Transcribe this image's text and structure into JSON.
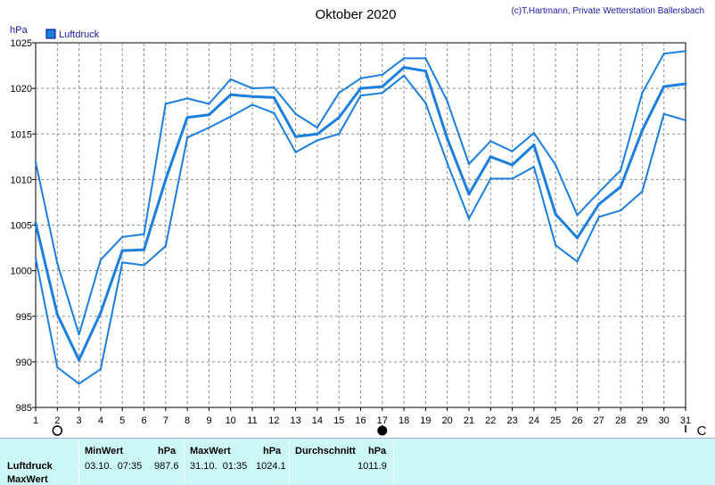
{
  "chart_data": {
    "type": "line",
    "title": "Oktober 2020",
    "credit": "(c)T.Hartmann, Private Wetterstation Ballersbach",
    "ylabel": "hPa",
    "ylim": [
      985,
      1025
    ],
    "yticks": [
      985,
      990,
      995,
      1000,
      1005,
      1010,
      1015,
      1020,
      1025
    ],
    "x": [
      1,
      2,
      3,
      4,
      5,
      6,
      7,
      8,
      9,
      10,
      11,
      12,
      13,
      14,
      15,
      16,
      17,
      18,
      19,
      20,
      21,
      22,
      23,
      24,
      25,
      26,
      27,
      28,
      29,
      30,
      31
    ],
    "legend": [
      "Luftdruck"
    ],
    "grid": true,
    "moon_phases": [
      {
        "day": 2,
        "symbol": "○"
      },
      {
        "day": 17,
        "symbol": "●"
      },
      {
        "day": 31,
        "symbol": "C"
      }
    ],
    "series": [
      {
        "name": "Luftdruck",
        "role": "max",
        "color": "#1a7fe0",
        "values": [
          1011.9,
          1000.8,
          993.0,
          1001.2,
          1003.7,
          1004.0,
          1018.3,
          1018.9,
          1018.3,
          1021.0,
          1020.0,
          1020.1,
          1017.2,
          1015.7,
          1019.5,
          1021.1,
          1021.5,
          1023.3,
          1023.3,
          1018.6,
          1011.7,
          1014.2,
          1013.1,
          1015.1,
          1011.6,
          1006.1,
          1008.6,
          1011.0,
          1019.5,
          1023.8,
          1024.1
        ]
      },
      {
        "name": "Luftdruck",
        "role": "mean",
        "color": "#1a7fe0",
        "values": [
          1005.2,
          995.2,
          990.2,
          995.4,
          1002.2,
          1002.3,
          1010.0,
          1016.8,
          1017.1,
          1019.3,
          1019.1,
          1019.0,
          1014.7,
          1015.0,
          1016.8,
          1020.0,
          1020.2,
          1022.3,
          1021.9,
          1014.5,
          1008.4,
          1012.5,
          1011.6,
          1013.8,
          1006.2,
          1003.6,
          1007.3,
          1009.2,
          1015.4,
          1020.2,
          1020.5
        ]
      },
      {
        "name": "Luftdruck",
        "role": "min",
        "color": "#1a7fe0",
        "values": [
          1001.4,
          989.4,
          987.6,
          989.2,
          1000.9,
          1000.6,
          1002.7,
          1014.6,
          1015.7,
          1016.9,
          1018.2,
          1017.3,
          1013.0,
          1014.3,
          1015.0,
          1019.2,
          1019.5,
          1021.4,
          1018.4,
          1011.8,
          1005.7,
          1010.1,
          1010.1,
          1011.4,
          1002.8,
          1001.0,
          1005.9,
          1006.6,
          1008.7,
          1017.2,
          1016.5
        ]
      }
    ]
  },
  "footer": {
    "row_labels": [
      "Luftdruck",
      "MaxWert"
    ],
    "min": {
      "header": "MinWert",
      "unit": "hPa",
      "datetime": "03.10.  07:35",
      "value": "987.6"
    },
    "max": {
      "header": "MaxWert",
      "unit": "hPa",
      "datetime": "31.10.  01:35",
      "value": "1024.1"
    },
    "avg": {
      "header": "Durchschnitt",
      "unit": "hPa",
      "value": "1011.9"
    }
  }
}
